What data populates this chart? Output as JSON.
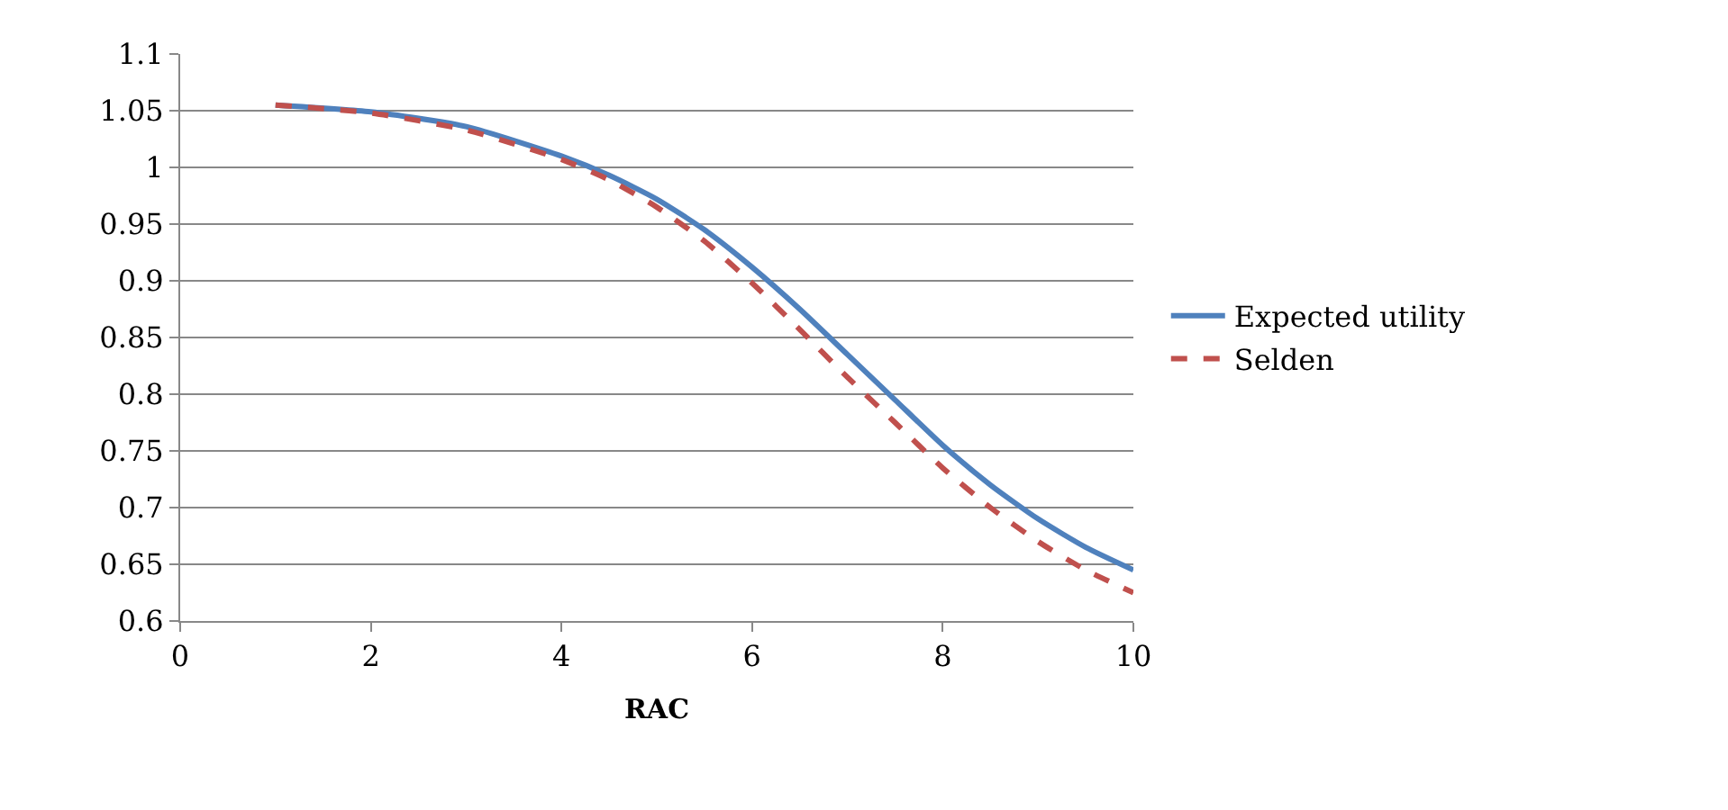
{
  "chart_data": {
    "type": "line",
    "xlabel": "RAC",
    "x": [
      1,
      2,
      3,
      4,
      4.5,
      5,
      5.5,
      6,
      6.5,
      7,
      7.5,
      8,
      8.5,
      9,
      9.5,
      10
    ],
    "series": [
      {
        "name": "Expected utility",
        "color": "#4f81bd",
        "line_style": "solid",
        "values": [
          1.055,
          1.049,
          1.036,
          1.01,
          0.993,
          0.972,
          0.945,
          0.912,
          0.875,
          0.835,
          0.795,
          0.755,
          0.72,
          0.69,
          0.665,
          0.645
        ]
      },
      {
        "name": "Selden",
        "color": "#c0504d",
        "line_style": "dashed",
        "values": [
          1.055,
          1.048,
          1.033,
          1.007,
          0.989,
          0.965,
          0.935,
          0.898,
          0.857,
          0.815,
          0.775,
          0.735,
          0.7,
          0.67,
          0.645,
          0.625
        ]
      }
    ],
    "xlim": [
      0,
      10
    ],
    "xticks": [
      0,
      2,
      4,
      6,
      8,
      10
    ],
    "ylim": [
      0.6,
      1.1
    ],
    "yticks": [
      0.6,
      0.65,
      0.7,
      0.75,
      0.8,
      0.85,
      0.9,
      0.95,
      1,
      1.05,
      1.1
    ],
    "grid": "y",
    "legend": "right",
    "marker": "none"
  }
}
